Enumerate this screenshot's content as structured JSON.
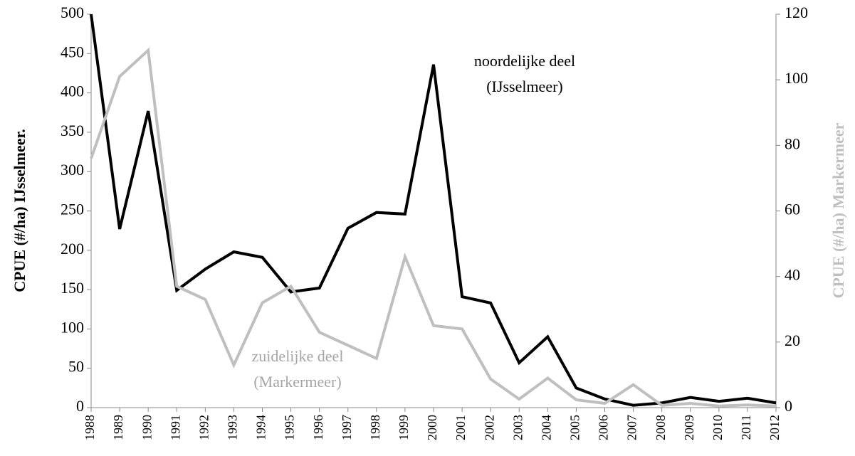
{
  "chart_data": {
    "type": "line",
    "y_label": "CPUE (#/ha) IJsselmeer.",
    "y2_label": "CPUE (#/ha) Markermeer",
    "categories": [
      "1988",
      "1989",
      "1990",
      "1991",
      "1992",
      "1993",
      "1994",
      "1995",
      "1996",
      "1997",
      "1998",
      "1999",
      "2000",
      "2001",
      "2002",
      "2003",
      "2004",
      "2005",
      "2006",
      "2007",
      "2008",
      "2009",
      "2010",
      "2011",
      "2012"
    ],
    "series": [
      {
        "label_lines": [
          "noordelijke deel",
          "(IJsselmeer)"
        ],
        "color": "#000000",
        "values": [
          500,
          227,
          377,
          149,
          176,
          198,
          191,
          147,
          152,
          228,
          248,
          246,
          436,
          141,
          133,
          57,
          90,
          25,
          11,
          3,
          6,
          13,
          8,
          12,
          6
        ]
      },
      {
        "label_lines": [
          "zuidelijke deel",
          "(Markermeer)"
        ],
        "color": "#bfbfbf",
        "axis": "y2",
        "values": [
          76,
          101,
          109,
          37,
          33,
          13,
          32,
          37,
          23,
          19,
          15,
          46,
          25,
          24,
          8.7,
          2.6,
          9,
          2.4,
          1.3,
          7,
          0.7,
          1.3,
          0.5,
          0.8,
          0.5
        ]
      }
    ],
    "ylim": [
      0,
      500
    ],
    "yticks": [
      0,
      50,
      100,
      150,
      200,
      250,
      300,
      350,
      400,
      450,
      500
    ],
    "y2lim": [
      0,
      120
    ],
    "y2ticks": [
      0,
      20,
      40,
      60,
      80,
      100,
      120
    ],
    "grid": false
  }
}
